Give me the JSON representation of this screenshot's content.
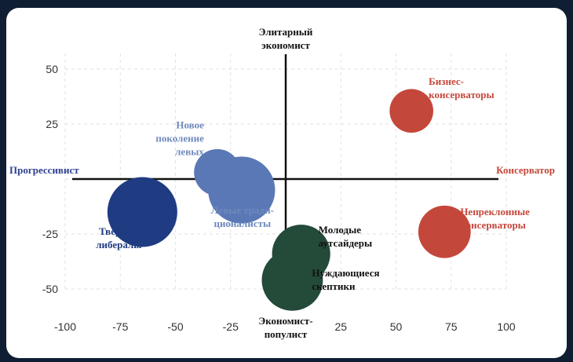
{
  "chart_data": {
    "type": "scatter",
    "title": "",
    "xlim": [
      -100,
      100
    ],
    "ylim": [
      -50,
      50
    ],
    "x_ticks": [
      -100,
      -75,
      -50,
      -25,
      0,
      25,
      50,
      75,
      100
    ],
    "y_ticks": [
      50,
      25,
      -25,
      -50
    ],
    "grid": true,
    "axis_labels": {
      "left": "Прогрессивист",
      "right": "Консерватор",
      "top": [
        "Элитарный",
        "экономист"
      ],
      "bottom": [
        "Экономист-",
        "популист"
      ]
    },
    "colors": {
      "dark_blue": "#1f3b82",
      "light_blue": "#5b78b6",
      "red": "#c4473b",
      "dark_green": "#244a39",
      "axis_label_left": "#2d3f91",
      "axis_label_right": "#c4473b",
      "axis_label_vertical": "#111111"
    },
    "points": [
      {
        "name": [
          "Бизнес-",
          "консерваторы"
        ],
        "x": 57,
        "y": 31,
        "size": 15,
        "color": "#c4473b",
        "label_color": "#c4473b"
      },
      {
        "name": [
          "Новое",
          "поколение",
          "левых"
        ],
        "x": -31,
        "y": 3,
        "size": 16,
        "color": "#5b78b6",
        "label_color": "#6e88bd"
      },
      {
        "name": [
          "Левые тради-",
          "ционалисты"
        ],
        "x": -20,
        "y": -5,
        "size": 23,
        "color": "#5b78b6",
        "label_color": "#6e88bd"
      },
      {
        "name": [
          "Твердые",
          "либералы"
        ],
        "x": -65,
        "y": -15,
        "size": 24,
        "color": "#1f3b82",
        "label_color": "#1f3b82"
      },
      {
        "name": [
          "Непреклонные",
          "консерваторы"
        ],
        "x": 72,
        "y": -24,
        "size": 18,
        "color": "#c4473b",
        "label_color": "#c4473b"
      },
      {
        "name": [
          "Молодые",
          "аутсайдеры"
        ],
        "x": 7,
        "y": -34,
        "size": 20,
        "color": "#244a39",
        "label_color": "#111111"
      },
      {
        "name": [
          "Нуждающиеся",
          "скептики"
        ],
        "x": 3,
        "y": -46,
        "size": 21,
        "color": "#244a39",
        "label_color": "#111111"
      }
    ]
  }
}
